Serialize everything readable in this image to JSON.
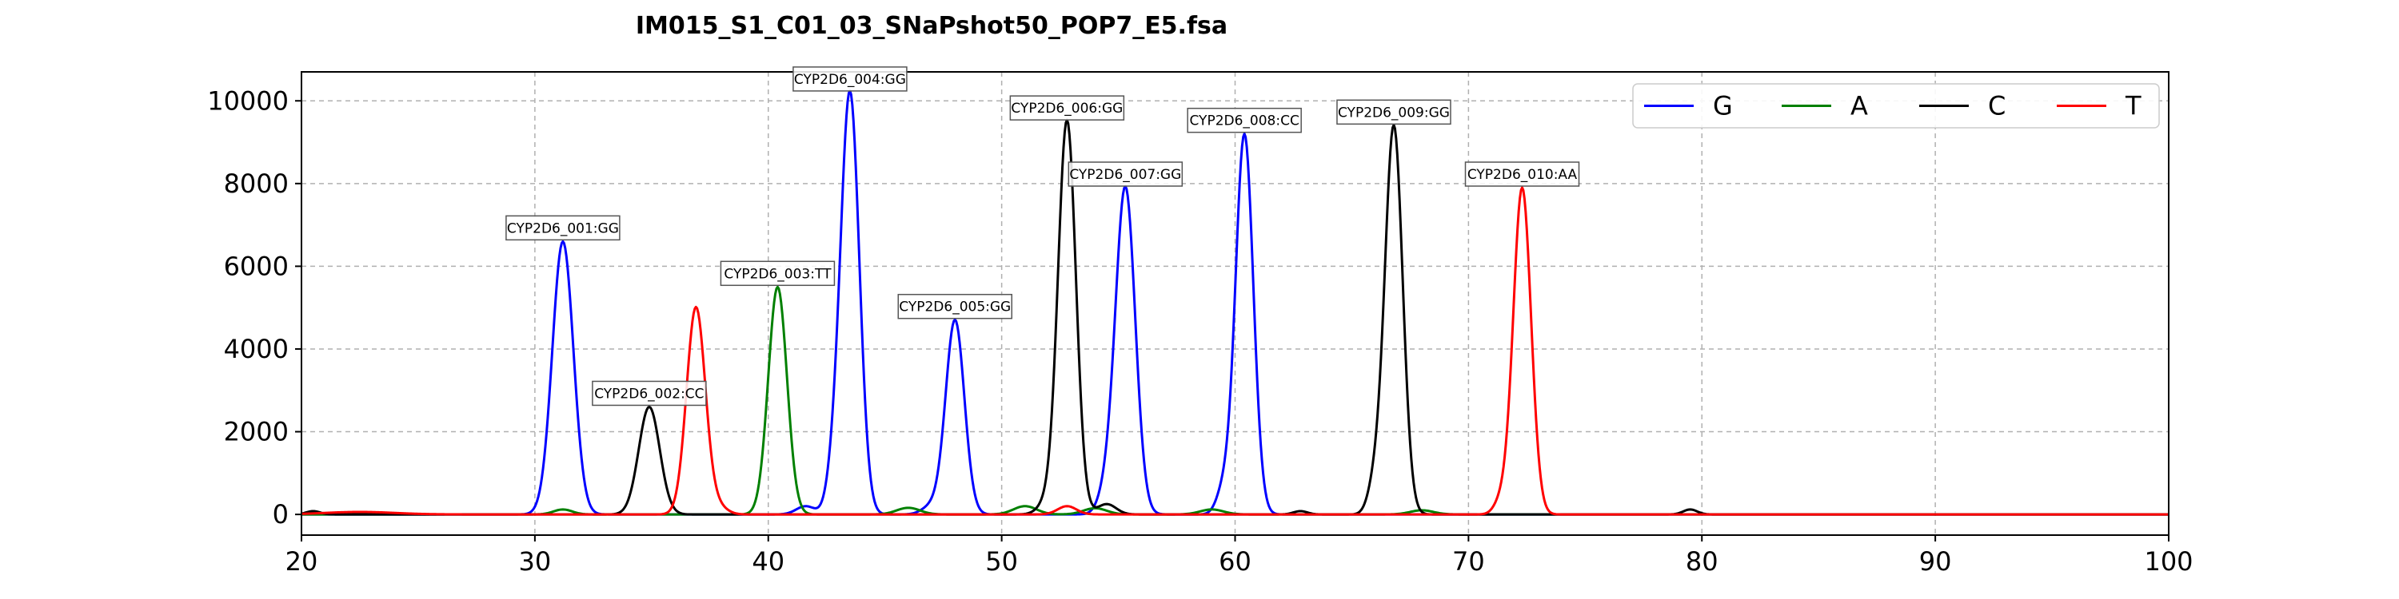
{
  "chart_data": {
    "type": "line",
    "title": "IM015_S1_C01_03_SNaPshot50_POP7_E5.fsa",
    "xlabel": "",
    "ylabel": "",
    "xlim": [
      20,
      100
    ],
    "ylim": [
      -500,
      10700
    ],
    "xticks": [
      20,
      30,
      40,
      50,
      60,
      70,
      80,
      90,
      100
    ],
    "yticks": [
      0,
      2000,
      4000,
      6000,
      8000,
      10000
    ],
    "grid": true,
    "legend_position": "top-right",
    "series": [
      {
        "name": "G",
        "color": "#0000ff",
        "peaks": [
          [
            31.2,
            6600,
            0.45
          ],
          [
            43.5,
            10200,
            0.4
          ],
          [
            48.0,
            4700,
            0.4
          ],
          [
            55.3,
            7900,
            0.42
          ],
          [
            60.4,
            9200,
            0.38
          ],
          [
            42.8,
            700,
            0.3
          ],
          [
            59.5,
            550,
            0.3
          ],
          [
            54.5,
            500,
            0.35
          ],
          [
            47.0,
            200,
            0.4
          ],
          [
            41.6,
            200,
            0.4
          ]
        ]
      },
      {
        "name": "A",
        "color": "#008000",
        "peaks": [
          [
            40.4,
            5500,
            0.4
          ],
          [
            31.2,
            120,
            0.4
          ],
          [
            46.0,
            160,
            0.5
          ],
          [
            51.0,
            200,
            0.5
          ],
          [
            54.0,
            150,
            0.5
          ],
          [
            59.0,
            120,
            0.5
          ],
          [
            68.0,
            100,
            0.5
          ]
        ]
      },
      {
        "name": "C",
        "color": "#000000",
        "peaks": [
          [
            34.9,
            2600,
            0.45
          ],
          [
            52.8,
            9500,
            0.38
          ],
          [
            66.8,
            9400,
            0.38
          ],
          [
            66.0,
            700,
            0.3
          ],
          [
            52.0,
            300,
            0.4
          ],
          [
            54.5,
            250,
            0.4
          ],
          [
            79.5,
            120,
            0.3
          ],
          [
            62.8,
            80,
            0.3
          ],
          [
            20.5,
            80,
            0.3
          ]
        ]
      },
      {
        "name": "T",
        "color": "#ff0000",
        "peaks": [
          [
            36.9,
            5000,
            0.4
          ],
          [
            72.3,
            7900,
            0.38
          ],
          [
            71.4,
            300,
            0.3
          ],
          [
            52.8,
            200,
            0.4
          ],
          [
            22.5,
            60,
            1.5
          ],
          [
            37.8,
            200,
            0.4
          ]
        ]
      }
    ],
    "annotations": [
      {
        "text": "CYP2D6_001:GG",
        "x": 31.2,
        "y": 6600
      },
      {
        "text": "CYP2D6_002:CC",
        "x": 34.9,
        "y": 2600
      },
      {
        "text": "CYP2D6_003:TT",
        "x": 40.4,
        "y": 5500
      },
      {
        "text": "CYP2D6_004:GG",
        "x": 43.5,
        "y": 10200
      },
      {
        "text": "CYP2D6_005:GG",
        "x": 48.0,
        "y": 4700
      },
      {
        "text": "CYP2D6_006:GG",
        "x": 52.8,
        "y": 9500
      },
      {
        "text": "CYP2D6_007:GG",
        "x": 55.3,
        "y": 7900
      },
      {
        "text": "CYP2D6_008:CC",
        "x": 60.4,
        "y": 9200
      },
      {
        "text": "CYP2D6_009:GG",
        "x": 66.8,
        "y": 9400
      },
      {
        "text": "CYP2D6_010:AA",
        "x": 72.3,
        "y": 7900
      }
    ]
  }
}
